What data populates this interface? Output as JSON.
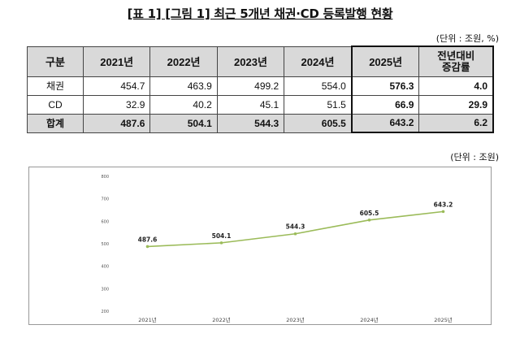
{
  "title": "[표 1] [그림 1] 최근 5개년 채권·CD 등록발행 현황",
  "table": {
    "unit": "(단위 : 조원, %)",
    "headers": [
      "구분",
      "2021년",
      "2022년",
      "2023년",
      "2024년",
      "2025년",
      "전년대비\n증감률"
    ],
    "rows": [
      {
        "label": "채권",
        "values": [
          "454.7",
          "463.9",
          "499.2",
          "554.0",
          "576.3",
          "4.0"
        ]
      },
      {
        "label": "CD",
        "values": [
          "32.9",
          "40.2",
          "45.1",
          "51.5",
          "66.9",
          "29.9"
        ]
      },
      {
        "label": "합계",
        "values": [
          "487.6",
          "504.1",
          "544.3",
          "605.5",
          "643.2",
          "6.2"
        ]
      }
    ]
  },
  "chart_unit": "(단위 : 조원)",
  "chart_data": {
    "type": "line",
    "categories": [
      "2021년",
      "2022년",
      "2023년",
      "2024년",
      "2025년"
    ],
    "series": [
      {
        "values": [
          487.6,
          504.1,
          544.3,
          605.5,
          643.2
        ]
      }
    ],
    "data_labels": [
      "487.6",
      "504.1",
      "544.3",
      "605.5",
      "643.2"
    ],
    "ylim": [
      200,
      800
    ],
    "yticks": [
      200,
      300,
      400,
      500,
      600,
      700,
      800
    ],
    "grid": false,
    "line_color": "#9bbb59"
  }
}
